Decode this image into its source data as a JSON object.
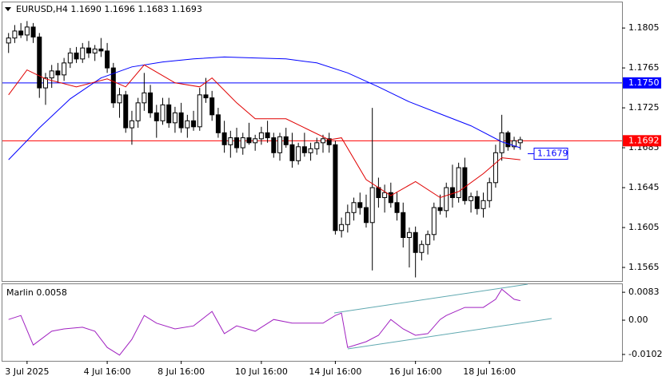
{
  "chart_data": [
    {
      "type": "candlestick",
      "title": "EURUSD,H4  1.1690 1.1696 1.1683 1.1693",
      "categories": [
        null,
        null,
        null,
        "3 Jul 2025",
        null,
        null,
        null,
        null,
        null,
        null,
        null,
        null,
        null,
        null,
        null,
        null,
        "4 Jul 16:00",
        null,
        null,
        null,
        null,
        null,
        null,
        null,
        null,
        null,
        null,
        null,
        "8 Jul 16:00",
        null,
        null,
        null,
        null,
        null,
        null,
        null,
        null,
        null,
        null,
        null,
        null,
        "10 Jul 16:00",
        null,
        null,
        null,
        null,
        null,
        null,
        null,
        null,
        null,
        null,
        null,
        "14 Jul 16:00",
        null,
        null,
        null,
        null,
        null,
        null,
        null,
        null,
        null,
        null,
        null,
        null,
        "16 Jul 16:00",
        null,
        null,
        null,
        null,
        null,
        null,
        null,
        null,
        null,
        null,
        null,
        "18 Jul 16:00",
        null,
        null,
        null,
        null,
        null
      ],
      "open": [
        1.179,
        1.1795,
        1.1802,
        1.1798,
        1.1806,
        1.1796,
        1.1745,
        1.1755,
        1.1762,
        1.1758,
        1.177,
        1.178,
        1.1774,
        1.1785,
        1.178,
        1.1784,
        1.1782,
        1.1765,
        1.173,
        1.1738,
        1.1705,
        1.1712,
        1.173,
        1.174,
        1.172,
        1.1712,
        1.1728,
        1.171,
        1.172,
        1.1705,
        1.1712,
        1.1706,
        1.1738,
        1.1735,
        1.1718,
        1.17,
        1.1688,
        1.1695,
        1.1685,
        1.1695,
        1.169,
        1.1694,
        1.17,
        1.1695,
        1.168,
        1.1696,
        1.1688,
        1.1672,
        1.1686,
        1.168,
        1.1684,
        1.169,
        1.1694,
        1.1688,
        1.1602,
        1.1608,
        1.162,
        1.163,
        1.1625,
        1.161,
        1.1645,
        1.1635,
        1.164,
        1.163,
        1.162,
        1.1595,
        1.16,
        1.158,
        1.1588,
        1.1598,
        1.1625,
        1.1622,
        1.1645,
        1.1635,
        1.1665,
        1.1632,
        1.1636,
        1.1624,
        1.1632,
        1.165,
        1.168,
        1.17,
        1.1686,
        1.169
      ],
      "high": [
        1.18,
        1.1808,
        1.181,
        1.1812,
        1.181,
        1.18,
        1.176,
        1.1768,
        1.177,
        1.1775,
        1.1785,
        1.1786,
        1.179,
        1.1792,
        1.1788,
        1.1795,
        1.179,
        1.177,
        1.1745,
        1.1742,
        1.1722,
        1.1735,
        1.176,
        1.1748,
        1.1728,
        1.1735,
        1.1735,
        1.1726,
        1.173,
        1.1718,
        1.1722,
        1.1745,
        1.1755,
        1.1742,
        1.1725,
        1.1712,
        1.1702,
        1.1705,
        1.17,
        1.171,
        1.1698,
        1.1706,
        1.1712,
        1.17,
        1.17,
        1.1705,
        1.17,
        1.169,
        1.17,
        1.169,
        1.1695,
        1.1698,
        1.17,
        1.1692,
        1.1615,
        1.1628,
        1.1635,
        1.164,
        1.1638,
        1.1725,
        1.1655,
        1.1648,
        1.165,
        1.164,
        1.163,
        1.1605,
        1.1606,
        1.1592,
        1.1602,
        1.163,
        1.1638,
        1.165,
        1.1668,
        1.167,
        1.1675,
        1.164,
        1.1642,
        1.164,
        1.1655,
        1.1688,
        1.1718,
        1.1702,
        1.1696,
        1.1696
      ],
      "low": [
        1.178,
        1.179,
        1.1795,
        1.1792,
        1.179,
        1.1735,
        1.1728,
        1.1745,
        1.175,
        1.1752,
        1.1765,
        1.177,
        1.177,
        1.1775,
        1.1772,
        1.1776,
        1.176,
        1.1725,
        1.1715,
        1.17,
        1.1688,
        1.1705,
        1.1722,
        1.1715,
        1.1695,
        1.1708,
        1.1705,
        1.17,
        1.17,
        1.1695,
        1.1702,
        1.1702,
        1.173,
        1.1712,
        1.1695,
        1.168,
        1.1675,
        1.168,
        1.1678,
        1.1688,
        1.1682,
        1.1688,
        1.169,
        1.1675,
        1.1672,
        1.1685,
        1.1665,
        1.1668,
        1.1676,
        1.1672,
        1.1678,
        1.168,
        1.168,
        1.1598,
        1.1595,
        1.16,
        1.1612,
        1.1618,
        1.1605,
        1.1562,
        1.1625,
        1.162,
        1.1625,
        1.1612,
        1.1585,
        1.1565,
        1.1555,
        1.1572,
        1.1578,
        1.1592,
        1.1618,
        1.1615,
        1.1625,
        1.163,
        1.1628,
        1.162,
        1.1618,
        1.1615,
        1.1625,
        1.1645,
        1.1672,
        1.1682,
        1.1683,
        1.1683
      ],
      "close": [
        1.1795,
        1.1802,
        1.1798,
        1.1806,
        1.1796,
        1.1745,
        1.1755,
        1.1762,
        1.1758,
        1.177,
        1.178,
        1.1774,
        1.1785,
        1.178,
        1.1784,
        1.1782,
        1.1765,
        1.173,
        1.1738,
        1.1705,
        1.1712,
        1.173,
        1.174,
        1.172,
        1.1712,
        1.1728,
        1.171,
        1.172,
        1.1705,
        1.1712,
        1.1706,
        1.1738,
        1.1735,
        1.1718,
        1.17,
        1.1688,
        1.1695,
        1.1685,
        1.1695,
        1.169,
        1.1694,
        1.17,
        1.1695,
        1.168,
        1.1696,
        1.1688,
        1.1672,
        1.1686,
        1.168,
        1.1684,
        1.169,
        1.1694,
        1.1688,
        1.1602,
        1.1608,
        1.162,
        1.163,
        1.1625,
        1.161,
        1.1645,
        1.1635,
        1.164,
        1.163,
        1.162,
        1.1595,
        1.16,
        1.158,
        1.1588,
        1.1598,
        1.1625,
        1.1622,
        1.1645,
        1.1635,
        1.1665,
        1.1632,
        1.1636,
        1.1624,
        1.1632,
        1.165,
        1.168,
        1.17,
        1.1686,
        1.1692,
        1.1693
      ],
      "series": [
        {
          "color": "#0000ff",
          "x": [
            0,
            5,
            10,
            15,
            20,
            25,
            30,
            35,
            40,
            45,
            50,
            55,
            60,
            65,
            70,
            75,
            80,
            83
          ],
          "values": [
            1.1673,
            1.1705,
            1.1734,
            1.1755,
            1.1766,
            1.1771,
            1.1774,
            1.1776,
            1.1775,
            1.1774,
            1.177,
            1.176,
            1.1746,
            1.1731,
            1.1719,
            1.1707,
            1.1691,
            1.1685
          ]
        },
        {
          "color": "#e00000",
          "x": [
            0,
            3,
            6,
            11,
            16,
            19,
            22,
            27,
            31,
            33,
            37,
            40,
            45,
            48,
            52,
            54,
            58,
            62,
            66,
            70,
            73,
            77,
            80,
            83
          ],
          "values": [
            1.1738,
            1.1763,
            1.1754,
            1.1746,
            1.1754,
            1.1746,
            1.1768,
            1.175,
            1.1746,
            1.1755,
            1.173,
            1.1714,
            1.1714,
            1.1705,
            1.1693,
            1.1695,
            1.1653,
            1.1637,
            1.1651,
            1.1635,
            1.1641,
            1.1659,
            1.1675,
            1.1673
          ]
        }
      ],
      "hlines": [
        {
          "value": 1.175,
          "label": "1.1750",
          "color": "#0000ff"
        },
        {
          "value": 1.1692,
          "label": "1.1692",
          "color": "#ff0000"
        }
      ],
      "annotations": [
        {
          "value": 1.1679,
          "label": "1.1679"
        }
      ],
      "xlim": [
        -1,
        99.5
      ],
      "ylim": [
        1.15514,
        1.18307
      ],
      "yticks": [
        1.1805,
        1.1765,
        1.1725,
        1.1685,
        1.1645,
        1.1605,
        1.1565
      ]
    },
    {
      "type": "line",
      "title": "Marlin 0.0058",
      "series": [
        {
          "color": "#a020c0",
          "x": [
            0,
            2,
            4,
            7,
            9,
            12,
            14,
            16,
            18,
            20,
            22,
            24,
            27,
            30,
            33,
            35,
            37,
            40,
            43,
            46,
            48,
            51,
            53,
            54,
            55,
            58,
            60,
            62,
            64,
            66,
            68,
            70,
            71,
            74,
            77,
            79,
            80,
            82,
            83
          ],
          "values": [
            0.0002,
            0.0014,
            -0.0074,
            -0.0033,
            -0.0026,
            -0.0021,
            -0.0033,
            -0.0081,
            -0.0104,
            -0.0057,
            0.0014,
            -0.0009,
            -0.0026,
            -0.0017,
            0.0026,
            -0.004,
            -0.0017,
            -0.0033,
            0.0002,
            -0.0009,
            -0.0009,
            -0.0009,
            0.0014,
            0.0021,
            -0.0081,
            -0.0064,
            -0.0045,
            0.0002,
            -0.0026,
            -0.0045,
            -0.004,
            0.0002,
            0.0014,
            0.0038,
            0.0038,
            0.0062,
            0.0092,
            0.0062,
            0.0058
          ]
        }
      ],
      "xlim": [
        -1,
        99.5
      ],
      "ylim": [
        -0.0121,
        0.0107
      ],
      "yticks": [
        0.0083,
        {
          "value": 0,
          "label": "0.00"
        },
        -0.0102
      ]
    }
  ]
}
